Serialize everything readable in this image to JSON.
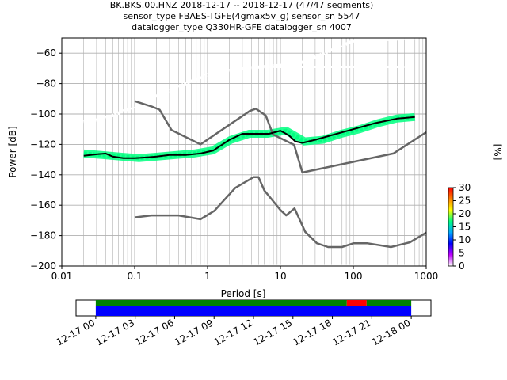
{
  "chart_data": [
    {
      "type": "line",
      "subtype": "probabilistic-power-spectral-density",
      "title_lines": [
        "BK.BKS.00.HNZ   2018-12-17 -- 2018-12-17  (47/47 segments)",
        "sensor_type FBAES-TGFE(4gmax5v_g) sensor_sn 5547",
        "datalogger_type Q330HR-GFE datalogger_sn 4007"
      ],
      "xlabel": "Period [s]",
      "ylabel": "Power [dB]",
      "x_scale": "log",
      "xlim": [
        0.01,
        1000
      ],
      "ylim": [
        -200,
        -50
      ],
      "x_ticks": [
        0.01,
        0.1,
        1,
        10,
        100,
        1000
      ],
      "x_tick_labels": [
        "0.01",
        "0.1",
        "1",
        "10",
        "100",
        "1000"
      ],
      "y_ticks": [
        -200,
        -180,
        -160,
        -140,
        -120,
        -100,
        -80,
        -60
      ],
      "y_tick_labels": [
        "−200",
        "−180",
        "−160",
        "−140",
        "−120",
        "−100",
        "−80",
        "−60"
      ],
      "grid": true,
      "colorbar": {
        "label": "[%]",
        "range": [
          0,
          30
        ],
        "ticks": [
          0,
          5,
          10,
          15,
          20,
          25,
          30
        ],
        "tick_labels": [
          "0",
          "5",
          "10",
          "15",
          "20",
          "25",
          "30"
        ],
        "colormap_stops": [
          "#ffffff",
          "#c000ff",
          "#0000ff",
          "#00a8ff",
          "#00ff80",
          "#ffff00",
          "#ff8000",
          "#ff0000"
        ]
      },
      "series": [
        {
          "role": "noise-model-high",
          "color": "#666666",
          "x": [
            0.1,
            0.17,
            0.22,
            0.32,
            0.8,
            3.8,
            4.6,
            6.3,
            7.9,
            15.4,
            20,
            354.8,
            1000
          ],
          "y": [
            -91.5,
            -95,
            -97.2,
            -110.5,
            -120,
            -98,
            -96.5,
            -101,
            -113.5,
            -120.3,
            -138.5,
            -126,
            -112
          ]
        },
        {
          "role": "noise-model-low",
          "color": "#666666",
          "x": [
            0.1,
            0.17,
            0.4,
            0.8,
            1.24,
            2.4,
            4.3,
            5,
            6,
            10,
            12,
            15.6,
            21.9,
            31.6,
            45,
            70,
            101,
            154,
            328,
            600,
            1000
          ],
          "y": [
            -168,
            -166.7,
            -166.7,
            -169.2,
            -163.7,
            -148.6,
            -141.5,
            -141.5,
            -150.2,
            -163.2,
            -166.7,
            -162.1,
            -177.5,
            -185,
            -187.5,
            -187.5,
            -185,
            -185,
            -187.5,
            -184.4,
            -178
          ]
        },
        {
          "role": "mode",
          "color": "#000000",
          "x": [
            0.02,
            0.03,
            0.04,
            0.05,
            0.07,
            0.1,
            0.15,
            0.2,
            0.3,
            0.5,
            0.8,
            1.2,
            2,
            3,
            5,
            7,
            10,
            13,
            16,
            20,
            30,
            50,
            100,
            200,
            400,
            700
          ],
          "y": [
            -127.5,
            -126.5,
            -126,
            -128,
            -129,
            -129,
            -128.5,
            -128,
            -127,
            -127,
            -126,
            -124,
            -117,
            -113,
            -113,
            -113,
            -111,
            -114,
            -118,
            -119,
            -117,
            -114,
            -110,
            -106,
            -103,
            -102
          ]
        }
      ],
      "histogram_bands": [
        {
          "label": "system-noise-floor",
          "x_range": [
            0.02,
            700
          ],
          "y_values": [
            -126,
            -127,
            -128,
            -129,
            -128,
            -127,
            -126,
            -124,
            -117,
            -113,
            -113,
            -111,
            -118,
            -117,
            -113,
            -110,
            -106,
            -103,
            -102
          ],
          "percent": 15
        },
        {
          "label": "upper-spread",
          "x": [
            0.02,
            0.03,
            0.05,
            0.1,
            0.2,
            0.4,
            1,
            3,
            10,
            20,
            50,
            100,
            300,
            700
          ],
          "y": [
            -105,
            -104,
            -101,
            -95,
            -88,
            -82,
            -74,
            -70,
            -68,
            -66,
            -58,
            -52,
            -51,
            -50
          ],
          "percent": 1
        },
        {
          "label": "flat-line-lower",
          "x_range": [
            8,
            500
          ],
          "y": -69,
          "percent": 1
        },
        {
          "label": "bottom-clip",
          "x_range": [
            0.02,
            700
          ],
          "y": -200,
          "percent": 1
        }
      ]
    },
    {
      "type": "timeline",
      "x_tick_labels": [
        "12-17 00",
        "12-17 03",
        "12-17 06",
        "12-17 09",
        "12-17 12",
        "12-17 15",
        "12-17 18",
        "12-17 21",
        "12-18 00"
      ],
      "x_range_hours": [
        -1.5,
        25.5
      ],
      "data_range_hours": [
        0,
        24
      ],
      "rows": [
        {
          "color": "#008000",
          "segments": [
            [
              0,
              19.1
            ],
            [
              20.6,
              24
            ]
          ]
        },
        {
          "color": "#ff0000",
          "segments": [
            [
              19.1,
              20.6
            ]
          ]
        },
        {
          "color": "#0000ff",
          "segments": [
            [
              0,
              24
            ]
          ]
        }
      ]
    }
  ]
}
